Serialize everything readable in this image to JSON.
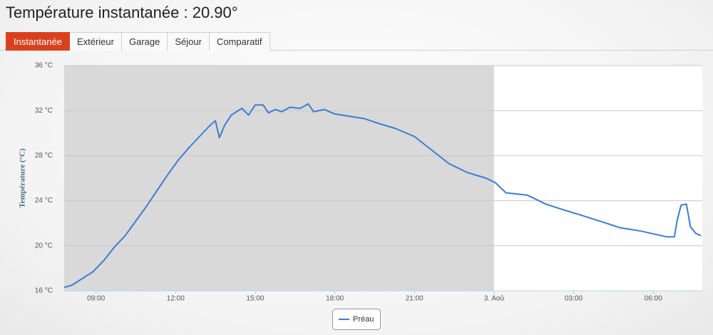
{
  "header": {
    "title": "Température instantanée : 20.90°"
  },
  "tabs": [
    "Instantanée",
    "Extérieur",
    "Garage",
    "Séjour",
    "Comparatif"
  ],
  "active_tab": 0,
  "chart_data": {
    "type": "line",
    "y_label": "Température (°C)",
    "x": [
      7.8,
      8.09,
      8.49,
      8.89,
      9.3,
      9.7,
      10.1,
      10.5,
      10.9,
      11.3,
      11.7,
      12.1,
      12.5,
      12.9,
      13.3,
      13.5,
      13.65,
      13.85,
      14.1,
      14.5,
      14.75,
      15.0,
      15.3,
      15.5,
      15.75,
      16.0,
      16.3,
      16.7,
      17.0,
      17.2,
      17.6,
      18.0,
      18.55,
      19.1,
      19.6,
      20.3,
      21.0,
      21.65,
      22.3,
      23.0,
      23.7,
      24.05,
      24.45,
      25.25,
      25.95,
      26.6,
      27.3,
      28.1,
      28.75,
      29.55,
      30.5,
      30.8,
      30.9,
      31.05,
      31.25,
      31.4,
      31.6,
      31.8
    ],
    "series": [
      {
        "name": "Préau",
        "color": "#3b7dd8",
        "values": [
          16.3,
          16.5,
          17.1,
          17.7,
          18.7,
          19.9,
          20.9,
          22.2,
          23.5,
          24.9,
          26.3,
          27.6,
          28.7,
          29.7,
          30.7,
          31.1,
          29.6,
          30.7,
          31.6,
          32.2,
          31.6,
          32.5,
          32.5,
          31.8,
          32.1,
          31.9,
          32.3,
          32.2,
          32.6,
          31.9,
          32.1,
          31.7,
          31.5,
          31.3,
          30.9,
          30.4,
          29.7,
          28.5,
          27.3,
          26.5,
          26.0,
          25.6,
          24.7,
          24.5,
          23.7,
          23.2,
          22.7,
          22.1,
          21.6,
          21.3,
          20.8,
          20.8,
          22.2,
          23.6,
          23.7,
          21.7,
          21.1,
          20.9
        ]
      }
    ],
    "xlim": [
      7.8,
      31.85
    ],
    "xticks": [
      {
        "value": 9,
        "label": "09:00"
      },
      {
        "value": 12,
        "label": "12:00"
      },
      {
        "value": 15,
        "label": "15:00"
      },
      {
        "value": 18,
        "label": "18:00"
      },
      {
        "value": 21,
        "label": "21:00"
      },
      {
        "value": 24,
        "label": "3. Aoû"
      },
      {
        "value": 27,
        "label": "03:00"
      },
      {
        "value": 30,
        "label": "06:00"
      }
    ],
    "ylim": [
      16,
      36
    ],
    "yticks": [
      {
        "value": 16,
        "label": "16 °C"
      },
      {
        "value": 20,
        "label": "20 °C"
      },
      {
        "value": 24,
        "label": "24 °C"
      },
      {
        "value": 28,
        "label": "28 °C"
      },
      {
        "value": 32,
        "label": "32 °C"
      },
      {
        "value": 36,
        "label": "36 °C"
      }
    ],
    "plot_band": {
      "from": 7.8,
      "to": 24,
      "color": "#d9d9d9"
    },
    "grid": true,
    "legend": "bottom"
  }
}
